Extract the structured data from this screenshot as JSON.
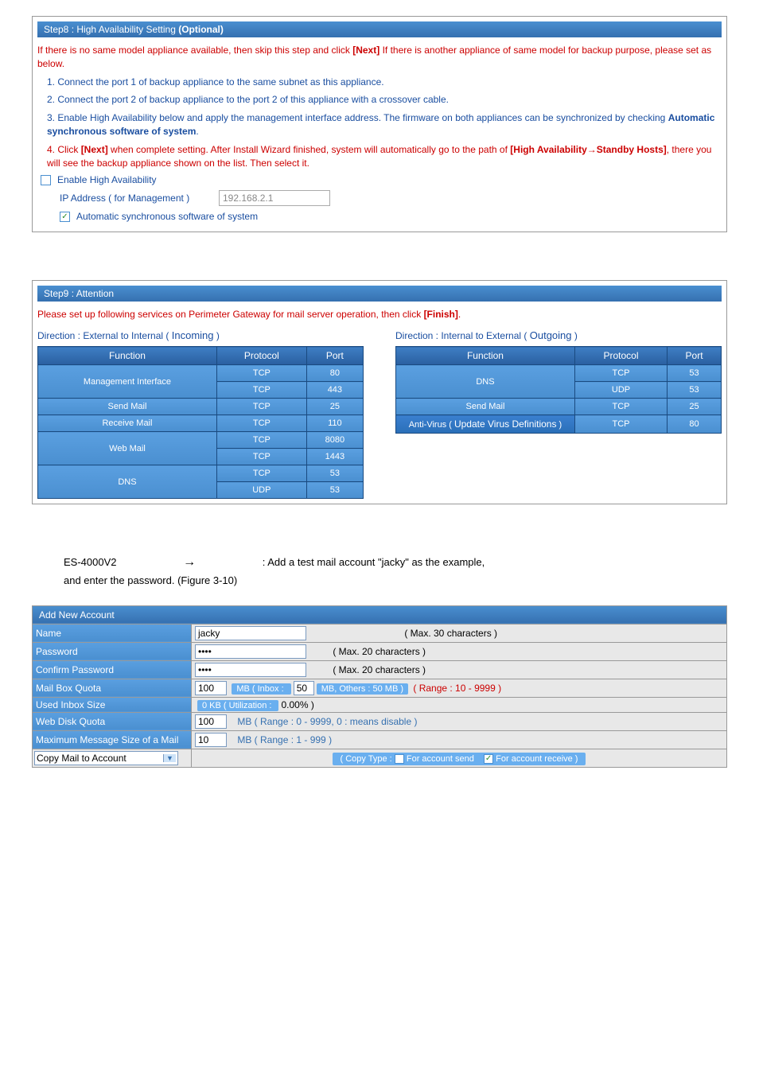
{
  "step8": {
    "header": "Step8 : High Availability Setting ",
    "header_bold": "(Optional)",
    "intro_a": "If there is no same model appliance available, then skip this step and click ",
    "intro_b": "[Next]",
    "intro_c": " If there is another appliance of same model for backup purpose, please set as below.",
    "p1": "1. Connect the port 1 of backup appliance to the same subnet as this appliance.",
    "p2": "2. Connect the port 2 of backup appliance to the port 2 of this appliance with a crossover cable.",
    "p3a": "3. Enable High Availability below and apply the management interface address. The firmware on both appliances can be synchronized by checking ",
    "p3b": "Automatic synchronous software of system",
    "p3c": ".",
    "p4a": "4. Click ",
    "p4b": "[Next]",
    "p4c": " when complete setting. After Install Wizard finished, system will automatically go to the path of ",
    "p4d": "[High Availability→Standby Hosts]",
    "p4e": ", there you will see the backup appliance shown on the list. Then select it.",
    "enable_ha": "Enable High Availability",
    "ip_label": "IP Address  ( for Management )",
    "ip_value": "192.168.2.1",
    "auto_sync": "Automatic synchronous software of system"
  },
  "step9": {
    "header": "Step9 : Attention",
    "intro_a": "Please set up following services on Perimeter Gateway for mail server operation, then click ",
    "intro_b": "[Finish]",
    "intro_c": ".",
    "left_dir_a": "Direction : External to Internal ( ",
    "left_dir_b": "Incoming",
    "left_dir_c": " )",
    "right_dir_a": "Direction : Internal to External ( ",
    "right_dir_b": "Outgoing",
    "right_dir_c": " )",
    "th_function": "Function",
    "th_protocol": "Protocol",
    "th_port": "Port",
    "left_rows": [
      {
        "fn": "Management Interface",
        "proto": "TCP",
        "port": "80",
        "rowspan": 2
      },
      {
        "fn": "",
        "proto": "TCP",
        "port": "443"
      },
      {
        "fn": "Send Mail",
        "proto": "TCP",
        "port": "25",
        "rowspan": 1
      },
      {
        "fn": "Receive Mail",
        "proto": "TCP",
        "port": "110",
        "rowspan": 1
      },
      {
        "fn": "Web Mail",
        "proto": "TCP",
        "port": "8080",
        "rowspan": 2
      },
      {
        "fn": "",
        "proto": "TCP",
        "port": "1443"
      },
      {
        "fn": "DNS",
        "proto": "TCP",
        "port": "53",
        "rowspan": 2
      },
      {
        "fn": "",
        "proto": "UDP",
        "port": "53"
      }
    ],
    "right_rows": [
      {
        "fn": "DNS",
        "proto": "TCP",
        "port": "53",
        "rowspan": 2
      },
      {
        "fn": "",
        "proto": "UDP",
        "port": "53"
      },
      {
        "fn": "Send Mail",
        "proto": "TCP",
        "port": "25",
        "rowspan": 1
      }
    ],
    "right_last_fn_a": "Anti-Virus ( ",
    "right_last_fn_b": "Update Virus Definitions",
    "right_last_fn_c": " )",
    "right_last_proto": "TCP",
    "right_last_port": "80"
  },
  "bridge": {
    "model": "ES-4000V2",
    "text": ": Add a test mail account \"jacky\" as the example,",
    "text2": "and enter the password. (Figure 3-10)"
  },
  "account": {
    "header": "Add New Account",
    "name_label": "Name",
    "name_value": "jacky",
    "name_hint": "( Max. 30 characters )",
    "pw_label": "Password",
    "pw_value": "••••",
    "pw_hint": "( Max. 20 characters )",
    "cpw_label": "Confirm Password",
    "cpw_value": "••••",
    "cpw_hint": "( Max. 20 characters )",
    "quota_label": "Mail Box Quota",
    "quota_value": "100",
    "quota_pill_a": "MB ( Inbox : ",
    "quota_inbox": "50",
    "quota_pill_b": "MB, Others : 50 MB )",
    "quota_range": " ( Range : 10 - 9999 )",
    "used_label": "Used Inbox Size",
    "used_pill_a": "0 KB ",
    "used_util": "( Utilization : ",
    "used_pct": "0.00%",
    "used_close": " )",
    "web_label": "Web Disk Quota",
    "web_value": "100",
    "web_hint": "MB ( Range : 0 - 9999, 0 : means disable )",
    "max_label": "Maximum Message Size of a Mail",
    "max_value": "10",
    "max_hint": "MB ( Range : 1 - 999 )",
    "copy_select": "Copy Mail to Account",
    "copy_pill_a": "( Copy Type : ",
    "copy_send": " For account send",
    "copy_recv": " For account receive )"
  }
}
